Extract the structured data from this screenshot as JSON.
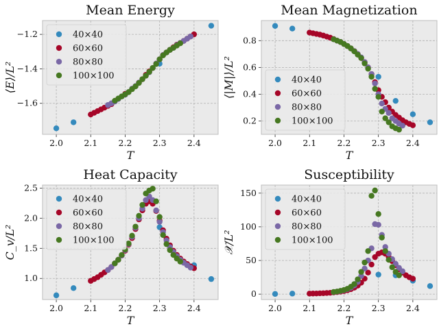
{
  "colors": {
    "background": "#eaeaea",
    "grid": "#b0b0b0",
    "s40": "#348abd",
    "s60": "#a60628",
    "s80": "#7a68a6",
    "s100": "#467821"
  },
  "chart_data": [
    {
      "type": "scatter",
      "title": "Mean Energy",
      "xlabel": "T",
      "ylabel": "⟨E⟩/L²",
      "xlim": [
        1.96,
        2.47
      ],
      "ylim": [
        -1.78,
        -1.12
      ],
      "xticks": [
        2.0,
        2.1,
        2.2,
        2.3,
        2.4
      ],
      "yticks": [
        -1.6,
        -1.4,
        -1.2
      ],
      "grid": true,
      "legend_position": "upper-left",
      "series": [
        {
          "name": "40×40",
          "x": [
            2.0,
            2.05,
            2.3,
            2.45
          ],
          "y": [
            -1.745,
            -1.71,
            -1.37,
            -1.15
          ]
        },
        {
          "name": "60×60",
          "x": [
            2.1,
            2.11,
            2.12,
            2.13,
            2.14,
            2.15,
            2.16,
            2.2,
            2.24,
            2.25,
            2.26,
            2.27,
            2.28,
            2.29,
            2.3,
            2.31,
            2.32,
            2.33,
            2.34,
            2.35,
            2.36,
            2.37,
            2.38,
            2.39,
            2.4
          ],
          "y": [
            -1.665,
            -1.655,
            -1.645,
            -1.635,
            -1.625,
            -1.615,
            -1.605,
            -1.545,
            -1.48,
            -1.46,
            -1.435,
            -1.415,
            -1.395,
            -1.37,
            -1.345,
            -1.32,
            -1.305,
            -1.29,
            -1.275,
            -1.26,
            -1.25,
            -1.238,
            -1.225,
            -1.212,
            -1.2
          ]
        },
        {
          "name": "80×80",
          "x": [
            2.15,
            2.16,
            2.17,
            2.18,
            2.19,
            2.2,
            2.21,
            2.22,
            2.23,
            2.24,
            2.25,
            2.26,
            2.27,
            2.28,
            2.29,
            2.3,
            2.31,
            2.32,
            2.33,
            2.34,
            2.35,
            2.36,
            2.37,
            2.38,
            2.39
          ],
          "y": [
            -1.61,
            -1.6,
            -1.59,
            -1.575,
            -1.56,
            -1.55,
            -1.535,
            -1.515,
            -1.5,
            -1.48,
            -1.46,
            -1.44,
            -1.42,
            -1.395,
            -1.37,
            -1.345,
            -1.32,
            -1.305,
            -1.29,
            -1.278,
            -1.262,
            -1.25,
            -1.238,
            -1.225,
            -1.212
          ]
        },
        {
          "name": "100×100",
          "x": [
            2.17,
            2.18,
            2.19,
            2.2,
            2.21,
            2.22,
            2.23,
            2.24,
            2.25,
            2.26,
            2.27,
            2.28,
            2.29,
            2.3,
            2.31,
            2.32,
            2.33,
            2.34,
            2.35,
            2.36
          ],
          "y": [
            -1.585,
            -1.572,
            -1.56,
            -1.548,
            -1.535,
            -1.518,
            -1.502,
            -1.482,
            -1.46,
            -1.44,
            -1.418,
            -1.395,
            -1.372,
            -1.345,
            -1.322,
            -1.305,
            -1.29,
            -1.278,
            -1.265,
            -1.252
          ]
        }
      ]
    },
    {
      "type": "scatter",
      "title": "Mean Magnetization",
      "xlabel": "T",
      "ylabel": "⟨|M|⟩/L²",
      "xlim": [
        1.96,
        2.47
      ],
      "ylim": [
        0.1,
        0.95
      ],
      "xticks": [
        2.0,
        2.1,
        2.2,
        2.3,
        2.4
      ],
      "yticks": [
        0.2,
        0.4,
        0.6,
        0.8
      ],
      "grid": true,
      "legend_position": "lower-left",
      "series": [
        {
          "name": "40×40",
          "x": [
            2.0,
            2.05,
            2.3,
            2.35,
            2.4,
            2.45
          ],
          "y": [
            0.91,
            0.89,
            0.53,
            0.35,
            0.25,
            0.19
          ]
        },
        {
          "name": "60×60",
          "x": [
            2.1,
            2.11,
            2.12,
            2.13,
            2.14,
            2.15,
            2.16,
            2.17,
            2.18,
            2.19,
            2.2,
            2.21,
            2.22,
            2.23,
            2.24,
            2.25,
            2.26,
            2.27,
            2.28,
            2.29,
            2.3,
            2.31,
            2.32,
            2.33,
            2.34,
            2.35,
            2.36,
            2.37,
            2.38,
            2.39,
            2.4
          ],
          "y": [
            0.86,
            0.855,
            0.85,
            0.845,
            0.838,
            0.83,
            0.822,
            0.812,
            0.8,
            0.79,
            0.775,
            0.76,
            0.742,
            0.722,
            0.7,
            0.67,
            0.64,
            0.6,
            0.55,
            0.49,
            0.43,
            0.38,
            0.34,
            0.3,
            0.27,
            0.245,
            0.225,
            0.205,
            0.19,
            0.178,
            0.168
          ]
        },
        {
          "name": "80×80",
          "x": [
            2.17,
            2.18,
            2.19,
            2.2,
            2.21,
            2.22,
            2.23,
            2.24,
            2.25,
            2.26,
            2.27,
            2.28,
            2.29,
            2.3,
            2.31,
            2.32,
            2.33,
            2.34,
            2.35,
            2.36,
            2.37
          ],
          "y": [
            0.81,
            0.8,
            0.79,
            0.775,
            0.76,
            0.742,
            0.722,
            0.7,
            0.675,
            0.64,
            0.6,
            0.55,
            0.48,
            0.4,
            0.33,
            0.29,
            0.26,
            0.22,
            0.2,
            0.18,
            0.165
          ]
        },
        {
          "name": "100×100",
          "x": [
            2.17,
            2.18,
            2.19,
            2.2,
            2.21,
            2.22,
            2.23,
            2.24,
            2.25,
            2.26,
            2.27,
            2.28,
            2.29,
            2.3,
            2.31,
            2.32,
            2.33,
            2.34,
            2.35,
            2.36
          ],
          "y": [
            0.81,
            0.8,
            0.79,
            0.775,
            0.76,
            0.742,
            0.72,
            0.695,
            0.67,
            0.63,
            0.59,
            0.53,
            0.44,
            0.38,
            0.27,
            0.22,
            0.19,
            0.16,
            0.145,
            0.135
          ]
        }
      ]
    },
    {
      "type": "scatter",
      "title": "Heat Capacity",
      "xlabel": "T",
      "ylabel": "C_v/L²",
      "xlim": [
        1.96,
        2.47
      ],
      "ylim": [
        0.65,
        2.55
      ],
      "xticks": [
        2.0,
        2.1,
        2.2,
        2.3,
        2.4
      ],
      "yticks": [
        1.0,
        1.5,
        2.0,
        2.5
      ],
      "grid": true,
      "legend_position": "upper-left",
      "series": [
        {
          "name": "40×40",
          "x": [
            2.0,
            2.05,
            2.3,
            2.4,
            2.45
          ],
          "y": [
            0.72,
            0.84,
            1.85,
            1.22,
            0.99
          ]
        },
        {
          "name": "60×60",
          "x": [
            2.1,
            2.11,
            2.12,
            2.13,
            2.14,
            2.15,
            2.16,
            2.17,
            2.18,
            2.19,
            2.2,
            2.21,
            2.22,
            2.23,
            2.24,
            2.25,
            2.26,
            2.27,
            2.28,
            2.29,
            2.3,
            2.31,
            2.32,
            2.33,
            2.34,
            2.35,
            2.36,
            2.37,
            2.38,
            2.39,
            2.4
          ],
          "y": [
            0.96,
            0.99,
            1.02,
            1.06,
            1.1,
            1.14,
            1.19,
            1.25,
            1.31,
            1.38,
            1.46,
            1.56,
            1.67,
            1.82,
            1.98,
            2.13,
            2.24,
            2.28,
            2.24,
            2.12,
            1.96,
            1.8,
            1.66,
            1.55,
            1.46,
            1.39,
            1.33,
            1.28,
            1.24,
            1.2,
            1.17
          ]
        },
        {
          "name": "80×80",
          "x": [
            2.15,
            2.16,
            2.17,
            2.18,
            2.19,
            2.2,
            2.21,
            2.22,
            2.23,
            2.24,
            2.25,
            2.26,
            2.27,
            2.28,
            2.29,
            2.3,
            2.31,
            2.32,
            2.33,
            2.34,
            2.35,
            2.36,
            2.37,
            2.38,
            2.39
          ],
          "y": [
            1.14,
            1.19,
            1.25,
            1.31,
            1.38,
            1.47,
            1.57,
            1.69,
            1.84,
            2.0,
            2.16,
            2.3,
            2.36,
            2.3,
            2.13,
            1.94,
            1.77,
            1.63,
            1.52,
            1.44,
            1.37,
            1.31,
            1.26,
            1.22,
            1.18
          ]
        },
        {
          "name": "100×100",
          "x": [
            2.17,
            2.18,
            2.19,
            2.2,
            2.21,
            2.22,
            2.23,
            2.24,
            2.25,
            2.26,
            2.27,
            2.28,
            2.29,
            2.3,
            2.31,
            2.32,
            2.33,
            2.34,
            2.35,
            2.36
          ],
          "y": [
            1.25,
            1.31,
            1.39,
            1.48,
            1.58,
            1.71,
            1.86,
            2.04,
            2.22,
            2.41,
            2.46,
            2.49,
            2.28,
            2.02,
            1.72,
            1.57,
            1.47,
            1.39,
            1.33,
            1.28
          ]
        }
      ]
    },
    {
      "type": "scatter",
      "title": "Susceptibility",
      "xlabel": "T",
      "ylabel": "𝒳/L²",
      "xlim": [
        1.96,
        2.47
      ],
      "ylim": [
        -8,
        162
      ],
      "xticks": [
        2.0,
        2.1,
        2.2,
        2.3,
        2.4
      ],
      "yticks": [
        0,
        50,
        100,
        150
      ],
      "grid": true,
      "legend_position": "upper-left",
      "series": [
        {
          "name": "40×40",
          "x": [
            2.0,
            2.05,
            2.3,
            2.35,
            2.4,
            2.45
          ],
          "y": [
            0.3,
            0.8,
            29,
            28,
            20,
            12
          ]
        },
        {
          "name": "60×60",
          "x": [
            2.1,
            2.11,
            2.12,
            2.13,
            2.14,
            2.15,
            2.16,
            2.17,
            2.18,
            2.19,
            2.2,
            2.21,
            2.22,
            2.23,
            2.24,
            2.25,
            2.26,
            2.27,
            2.28,
            2.29,
            2.3,
            2.31,
            2.32,
            2.33,
            2.34,
            2.35,
            2.36,
            2.37,
            2.38,
            2.39,
            2.4
          ],
          "y": [
            0.8,
            0.9,
            1.0,
            1.2,
            1.4,
            1.7,
            2.0,
            2.5,
            3.0,
            3.7,
            4.6,
            5.8,
            7.4,
            9.6,
            12.7,
            17,
            23,
            32,
            44,
            55,
            60,
            62,
            60,
            55,
            49,
            43,
            37,
            32,
            28,
            25,
            23
          ]
        },
        {
          "name": "80×80",
          "x": [
            2.17,
            2.18,
            2.19,
            2.2,
            2.21,
            2.22,
            2.23,
            2.24,
            2.25,
            2.26,
            2.27,
            2.28,
            2.29,
            2.3,
            2.31,
            2.32,
            2.33,
            2.34,
            2.35,
            2.36,
            2.37
          ],
          "y": [
            3.0,
            3.7,
            4.6,
            5.8,
            7.4,
            9.6,
            13,
            18,
            27,
            38,
            50,
            68,
            104,
            103,
            88,
            70,
            60,
            52,
            45,
            39,
            34
          ]
        },
        {
          "name": "100×100",
          "x": [
            2.17,
            2.18,
            2.19,
            2.2,
            2.21,
            2.22,
            2.23,
            2.24,
            2.25,
            2.26,
            2.27,
            2.28,
            2.29,
            2.3,
            2.31,
            2.32,
            2.33,
            2.34,
            2.35,
            2.36
          ],
          "y": [
            3.2,
            3.9,
            4.9,
            6.2,
            8.0,
            11,
            15,
            22,
            33,
            47,
            64,
            146,
            154,
            119,
            84,
            64,
            51,
            40,
            33,
            28
          ]
        }
      ]
    }
  ]
}
